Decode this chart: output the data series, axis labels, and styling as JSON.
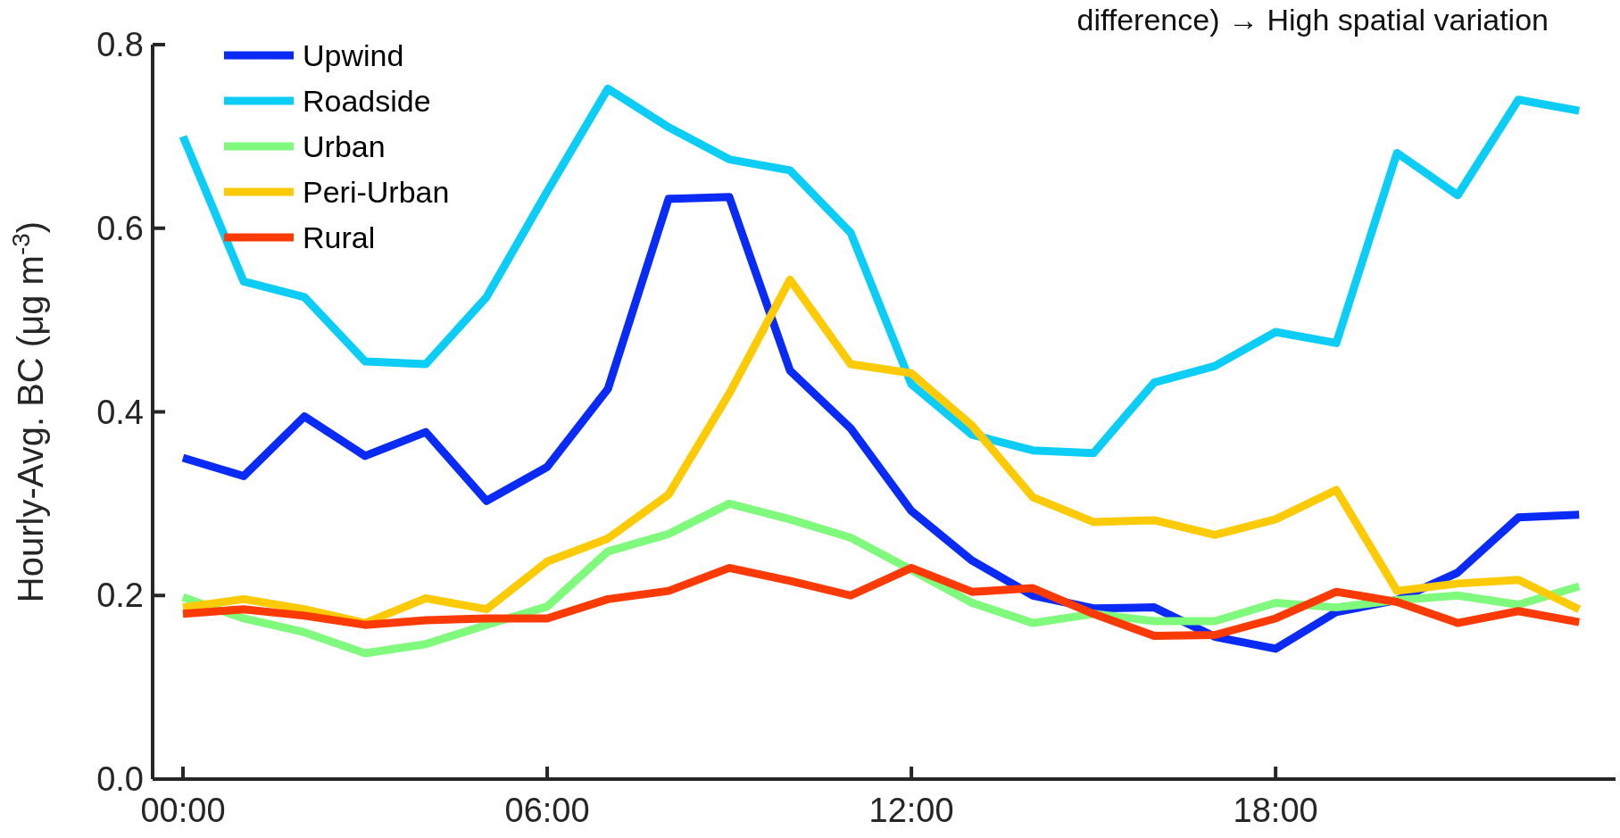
{
  "chart_data": {
    "type": "line",
    "ylabel": "Hourly-Avg. BC (μg m$^{-3}$)",
    "annotations": [
      "difference) → High spatial variation"
    ],
    "x": [
      0,
      1,
      2,
      3,
      4,
      5,
      6,
      7,
      8,
      9,
      10,
      11,
      12,
      13,
      14,
      15,
      16,
      17,
      18,
      19,
      20,
      21,
      22,
      23
    ],
    "xlim": [
      -0.5,
      23.6
    ],
    "xticks": [
      {
        "value": 0,
        "label": "00:00"
      },
      {
        "value": 6,
        "label": "06:00"
      },
      {
        "value": 12,
        "label": "12:00"
      },
      {
        "value": 18,
        "label": "18:00"
      }
    ],
    "ylim": [
      0,
      0.8
    ],
    "yticks": [
      {
        "value": 0,
        "label": "0.0"
      },
      {
        "value": 0.2,
        "label": "0.2"
      },
      {
        "value": 0.4,
        "label": "0.4"
      },
      {
        "value": 0.6,
        "label": "0.6"
      },
      {
        "value": 0.8,
        "label": "0.8"
      }
    ],
    "grid": false,
    "legend": "top left",
    "line_style": "solid",
    "series": [
      {
        "name": "Upwind",
        "color": "#0a2af5",
        "values": [
          0.35,
          0.33,
          0.395,
          0.352,
          0.378,
          0.303,
          0.34,
          0.425,
          0.632,
          0.634,
          0.445,
          0.382,
          0.292,
          0.238,
          0.2,
          0.186,
          0.187,
          0.155,
          0.142,
          0.182,
          0.195,
          0.225,
          0.285,
          0.288
        ]
      },
      {
        "name": "Roadside",
        "color": "#0ccdf5",
        "values": [
          0.7,
          0.542,
          0.525,
          0.455,
          0.452,
          0.525,
          0.64,
          0.752,
          0.71,
          0.675,
          0.663,
          0.595,
          0.43,
          0.375,
          0.358,
          0.355,
          0.432,
          0.45,
          0.487,
          0.475,
          0.682,
          0.636,
          0.74,
          0.728
        ]
      },
      {
        "name": "Urban",
        "color": "#80fa7c",
        "values": [
          0.198,
          0.175,
          0.16,
          0.137,
          0.147,
          0.168,
          0.188,
          0.248,
          0.267,
          0.3,
          0.283,
          0.263,
          0.228,
          0.192,
          0.17,
          0.18,
          0.172,
          0.172,
          0.192,
          0.187,
          0.195,
          0.2,
          0.19,
          0.21
        ]
      },
      {
        "name": "Peri-Urban",
        "color": "#fccb05",
        "values": [
          0.187,
          0.196,
          0.185,
          0.17,
          0.197,
          0.185,
          0.237,
          0.262,
          0.31,
          0.42,
          0.544,
          0.452,
          0.442,
          0.385,
          0.307,
          0.28,
          0.282,
          0.266,
          0.283,
          0.315,
          0.205,
          0.213,
          0.217,
          0.185
        ]
      },
      {
        "name": "Rural",
        "color": "#fc3a05",
        "values": [
          0.18,
          0.185,
          0.178,
          0.168,
          0.173,
          0.175,
          0.175,
          0.196,
          0.205,
          0.23,
          0.216,
          0.2,
          0.23,
          0.204,
          0.208,
          0.18,
          0.156,
          0.157,
          0.175,
          0.204,
          0.193,
          0.17,
          0.183,
          0.171
        ]
      }
    ]
  }
}
